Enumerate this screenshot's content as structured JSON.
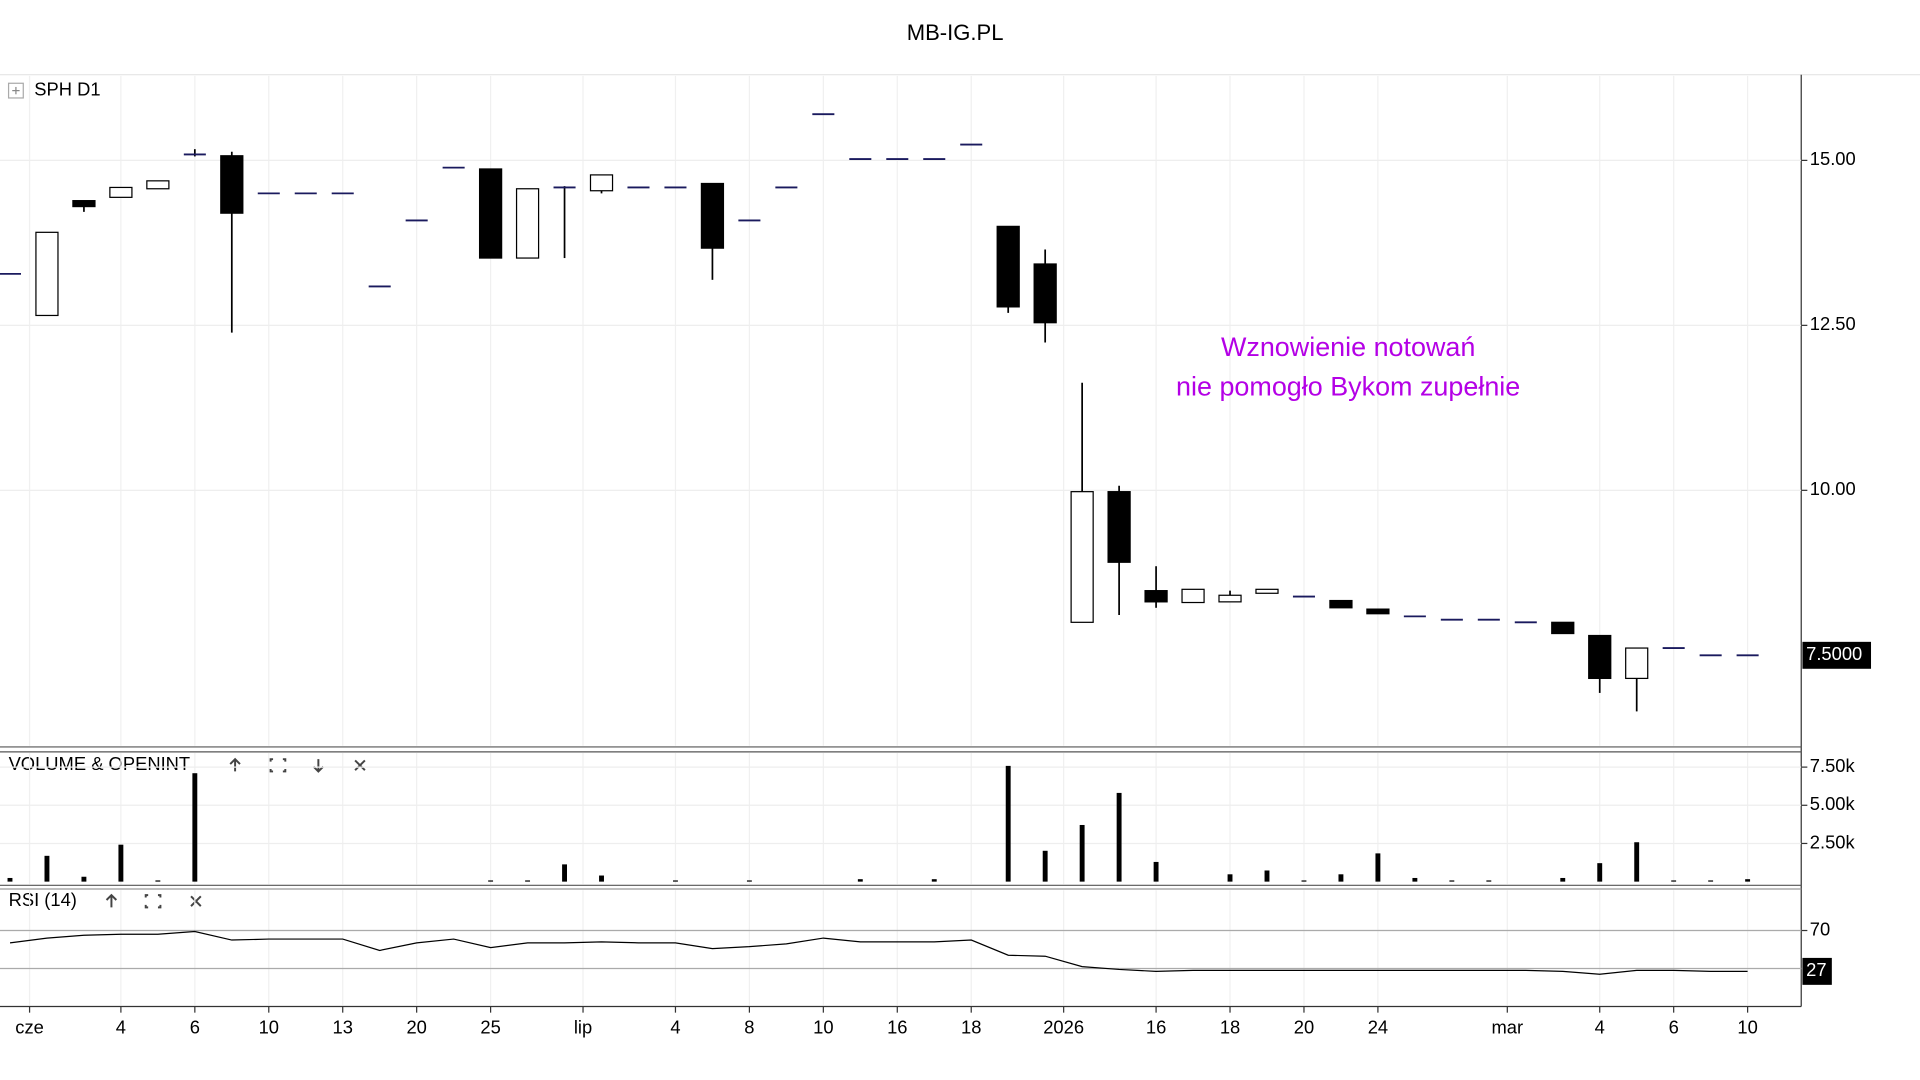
{
  "chart_data": {
    "type": "candlestick",
    "title": "MB-IG.PL",
    "panel_label": "SPH D1",
    "annotation_lines": [
      "Wznowienie notowań",
      "nie pomogło Bykom zupełnie"
    ],
    "annotation_color": "#b400e6",
    "xlim": [
      -0.27,
      48.45
    ],
    "xticks": [
      {
        "value": 0.53,
        "label": "cze"
      },
      {
        "value": 3,
        "label": "4"
      },
      {
        "value": 5,
        "label": "6"
      },
      {
        "value": 7,
        "label": "10"
      },
      {
        "value": 9,
        "label": "13"
      },
      {
        "value": 11,
        "label": "20"
      },
      {
        "value": 13,
        "label": "25"
      },
      {
        "value": 15.5,
        "label": "lip"
      },
      {
        "value": 18,
        "label": "4"
      },
      {
        "value": 20,
        "label": "8"
      },
      {
        "value": 22,
        "label": "10"
      },
      {
        "value": 24,
        "label": "16"
      },
      {
        "value": 26,
        "label": "18"
      },
      {
        "value": 28.5,
        "label": "2026"
      },
      {
        "value": 31,
        "label": "16"
      },
      {
        "value": 33,
        "label": "18"
      },
      {
        "value": 35,
        "label": "20"
      },
      {
        "value": 37,
        "label": "24"
      },
      {
        "value": 40.5,
        "label": "mar"
      },
      {
        "value": 43,
        "label": "4"
      },
      {
        "value": 45,
        "label": "6"
      },
      {
        "value": 47,
        "label": "10"
      }
    ],
    "ylim": [
      6.13,
      16.28
    ],
    "yticks": [
      {
        "value": 10,
        "label": "10.00"
      },
      {
        "value": 12.5,
        "label": "12.50"
      },
      {
        "value": 15,
        "label": "15.00"
      }
    ],
    "last_price": {
      "value": 7.5,
      "label": "7.5000"
    },
    "grid": true,
    "up_color": "#ffffff",
    "down_color": "#000000",
    "flat_color": "#1a1a5e",
    "open": [
      13.28,
      12.65,
      14.39,
      14.44,
      14.57,
      15.09,
      15.07,
      14.5,
      14.5,
      14.5,
      13.09,
      14.09,
      14.89,
      14.87,
      13.52,
      14.59,
      14.54,
      14.59,
      14.59,
      14.65,
      14.09,
      14.59,
      15.7,
      15.02,
      15.02,
      15.02,
      15.24,
      14.0,
      13.43,
      8.0,
      9.98,
      8.48,
      8.3,
      8.31,
      8.44,
      8.39,
      8.33,
      8.2,
      8.09,
      8.04,
      8.04,
      8.0,
      8.0,
      7.8,
      7.15,
      7.61,
      7.5,
      7.5
    ],
    "high": [
      13.28,
      13.91,
      14.39,
      14.59,
      14.69,
      15.17,
      15.13,
      14.5,
      14.5,
      14.5,
      13.09,
      14.09,
      14.89,
      14.87,
      14.57,
      14.61,
      14.78,
      14.59,
      14.59,
      14.65,
      14.09,
      14.59,
      15.7,
      15.02,
      15.02,
      15.02,
      15.24,
      14.0,
      13.65,
      11.63,
      10.07,
      8.85,
      8.5,
      8.48,
      8.5,
      8.39,
      8.33,
      8.2,
      8.09,
      8.04,
      8.04,
      8.0,
      8.0,
      7.8,
      7.61,
      7.61,
      7.5,
      7.5
    ],
    "low": [
      13.28,
      12.65,
      14.22,
      14.44,
      14.57,
      15.06,
      12.39,
      14.5,
      14.5,
      14.5,
      13.09,
      14.09,
      14.89,
      13.52,
      13.52,
      13.52,
      14.5,
      14.59,
      14.59,
      13.19,
      14.09,
      14.59,
      15.7,
      15.02,
      15.02,
      15.02,
      15.24,
      12.69,
      12.24,
      8.0,
      8.11,
      8.22,
      8.3,
      8.31,
      8.44,
      8.39,
      8.22,
      8.13,
      8.09,
      8.04,
      8.04,
      8.0,
      7.83,
      6.93,
      6.65,
      7.61,
      7.5,
      7.5
    ],
    "close": [
      13.28,
      13.91,
      14.3,
      14.59,
      14.69,
      15.09,
      14.2,
      14.5,
      14.5,
      14.5,
      13.09,
      14.09,
      14.89,
      13.52,
      14.57,
      14.59,
      14.78,
      14.59,
      14.59,
      13.67,
      14.09,
      14.59,
      15.7,
      15.02,
      15.02,
      15.02,
      15.24,
      12.78,
      12.54,
      9.98,
      8.91,
      8.31,
      8.5,
      8.41,
      8.5,
      8.39,
      8.22,
      8.13,
      8.09,
      8.04,
      8.04,
      8.0,
      7.83,
      7.15,
      7.61,
      7.61,
      7.5,
      7.5
    ],
    "volume": {
      "label": "VOLUME & OPENINT",
      "color": "#000000",
      "ylim": [
        0,
        8500
      ],
      "yticks": [
        {
          "value": 2500,
          "label": "2.50k"
        },
        {
          "value": 5000,
          "label": "5.00k"
        },
        {
          "value": 7500,
          "label": "7.50k"
        }
      ],
      "values": [
        240,
        1690,
        320,
        2420,
        80,
        7100,
        0,
        0,
        0,
        0,
        0,
        0,
        0,
        80,
        80,
        1130,
        400,
        0,
        80,
        0,
        80,
        0,
        0,
        160,
        0,
        160,
        0,
        7580,
        2020,
        3710,
        5810,
        1290,
        0,
        480,
        730,
        80,
        480,
        1850,
        240,
        80,
        80,
        0,
        240,
        1210,
        2580,
        80,
        80,
        160
      ]
    },
    "rsi": {
      "label": "RSI (14)",
      "color": "#000000",
      "ylim": [
        -10,
        115
      ],
      "yticks": [
        70
      ],
      "levels": [
        70,
        30
      ],
      "last_value": 27,
      "values": [
        57,
        62,
        65,
        66,
        66,
        69,
        60,
        61,
        61,
        61,
        49,
        57,
        61,
        52,
        57,
        57,
        58,
        57,
        57,
        51,
        53,
        56,
        62,
        58,
        58,
        58,
        60,
        44,
        43,
        32,
        29,
        27,
        28,
        28,
        28,
        28,
        28,
        28,
        28,
        28,
        28,
        28,
        27,
        24,
        28,
        28,
        27,
        27
      ]
    }
  }
}
